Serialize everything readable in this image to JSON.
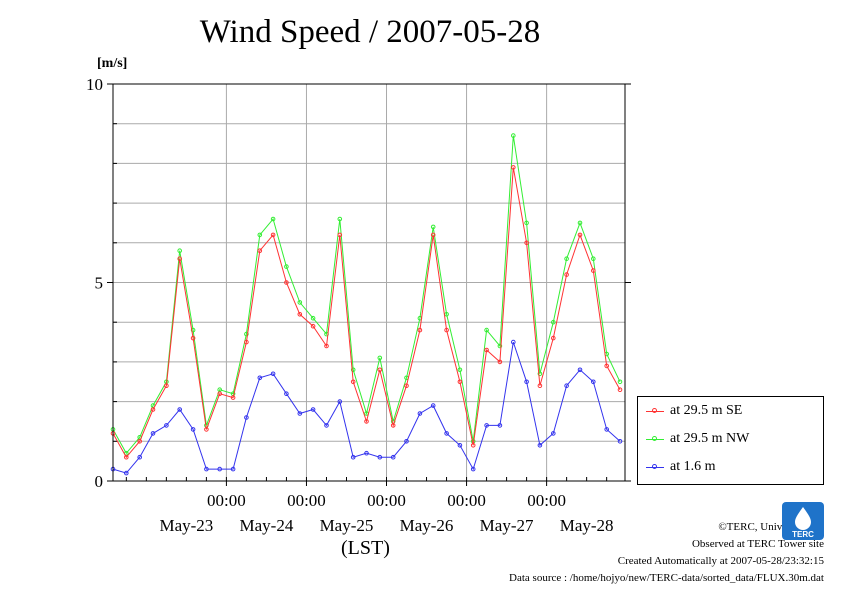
{
  "title": "Wind Speed / 2007-05-28",
  "unit_label": "[m/s]",
  "xlabel": "(LST)",
  "footer": {
    "copyright": "©TERC, Univ. Tsukuba",
    "observed": "Observed at TERC Tower site",
    "created": "Created Automatically at 2007-05-28/23:32:15",
    "source": "Data source : /home/hojyo/new/TERC-data/sorted_data/FLUX.30m.dat"
  },
  "logo_text": "TERC",
  "chart_data": {
    "type": "line",
    "title": "Wind Speed / 2007-05-28",
    "ylabel": "[m/s]",
    "xlabel": "(LST)",
    "ylim": [
      0,
      10
    ],
    "y_ticks": [
      "0",
      "5",
      "10"
    ],
    "x_time_ticks": [
      "00:00",
      "00:00",
      "00:00",
      "00:00",
      "00:00"
    ],
    "x_date_labels": [
      "May-23",
      "May-24",
      "May-25",
      "May-26",
      "May-27",
      "May-28"
    ],
    "x_range": [
      "2007-05-22 14:00",
      "2007-05-28 23:30"
    ],
    "grid": true,
    "legend_position": "right",
    "series": [
      {
        "name": "at 29.5 m SE",
        "color": "#ff3333",
        "points": [
          [
            "2007-05-22 14:00",
            1.2
          ],
          [
            "2007-05-22 18:00",
            0.6
          ],
          [
            "2007-05-22 22:00",
            1.0
          ],
          [
            "2007-05-23 02:00",
            1.8
          ],
          [
            "2007-05-23 06:00",
            2.4
          ],
          [
            "2007-05-23 10:00",
            5.6
          ],
          [
            "2007-05-23 14:00",
            3.6
          ],
          [
            "2007-05-23 18:00",
            1.3
          ],
          [
            "2007-05-23 22:00",
            2.2
          ],
          [
            "2007-05-24 02:00",
            2.1
          ],
          [
            "2007-05-24 06:00",
            3.5
          ],
          [
            "2007-05-24 10:00",
            5.8
          ],
          [
            "2007-05-24 14:00",
            6.2
          ],
          [
            "2007-05-24 18:00",
            5.0
          ],
          [
            "2007-05-24 22:00",
            4.2
          ],
          [
            "2007-05-25 02:00",
            3.9
          ],
          [
            "2007-05-25 06:00",
            3.4
          ],
          [
            "2007-05-25 10:00",
            6.2
          ],
          [
            "2007-05-25 14:00",
            2.5
          ],
          [
            "2007-05-25 18:00",
            1.5
          ],
          [
            "2007-05-25 22:00",
            2.8
          ],
          [
            "2007-05-26 02:00",
            1.4
          ],
          [
            "2007-05-26 06:00",
            2.4
          ],
          [
            "2007-05-26 10:00",
            3.8
          ],
          [
            "2007-05-26 14:00",
            6.2
          ],
          [
            "2007-05-26 18:00",
            3.8
          ],
          [
            "2007-05-26 22:00",
            2.5
          ],
          [
            "2007-05-27 02:00",
            0.9
          ],
          [
            "2007-05-27 06:00",
            3.3
          ],
          [
            "2007-05-27 10:00",
            3.0
          ],
          [
            "2007-05-27 14:00",
            7.9
          ],
          [
            "2007-05-27 18:00",
            6.0
          ],
          [
            "2007-05-27 22:00",
            2.4
          ],
          [
            "2007-05-28 02:00",
            3.6
          ],
          [
            "2007-05-28 06:00",
            5.2
          ],
          [
            "2007-05-28 10:00",
            6.2
          ],
          [
            "2007-05-28 14:00",
            5.3
          ],
          [
            "2007-05-28 18:00",
            2.9
          ],
          [
            "2007-05-28 22:00",
            2.3
          ]
        ]
      },
      {
        "name": "at 29.5 m NW",
        "color": "#33ee33",
        "points": [
          [
            "2007-05-22 14:00",
            1.3
          ],
          [
            "2007-05-22 18:00",
            0.7
          ],
          [
            "2007-05-22 22:00",
            1.1
          ],
          [
            "2007-05-23 02:00",
            1.9
          ],
          [
            "2007-05-23 06:00",
            2.5
          ],
          [
            "2007-05-23 10:00",
            5.8
          ],
          [
            "2007-05-23 14:00",
            3.8
          ],
          [
            "2007-05-23 18:00",
            1.4
          ],
          [
            "2007-05-23 22:00",
            2.3
          ],
          [
            "2007-05-24 02:00",
            2.2
          ],
          [
            "2007-05-24 06:00",
            3.7
          ],
          [
            "2007-05-24 10:00",
            6.2
          ],
          [
            "2007-05-24 14:00",
            6.6
          ],
          [
            "2007-05-24 18:00",
            5.4
          ],
          [
            "2007-05-24 22:00",
            4.5
          ],
          [
            "2007-05-25 02:00",
            4.1
          ],
          [
            "2007-05-25 06:00",
            3.7
          ],
          [
            "2007-05-25 10:00",
            6.6
          ],
          [
            "2007-05-25 14:00",
            2.8
          ],
          [
            "2007-05-25 18:00",
            1.7
          ],
          [
            "2007-05-25 22:00",
            3.1
          ],
          [
            "2007-05-26 02:00",
            1.5
          ],
          [
            "2007-05-26 06:00",
            2.6
          ],
          [
            "2007-05-26 10:00",
            4.1
          ],
          [
            "2007-05-26 14:00",
            6.4
          ],
          [
            "2007-05-26 18:00",
            4.2
          ],
          [
            "2007-05-26 22:00",
            2.8
          ],
          [
            "2007-05-27 02:00",
            1.0
          ],
          [
            "2007-05-27 06:00",
            3.8
          ],
          [
            "2007-05-27 10:00",
            3.4
          ],
          [
            "2007-05-27 14:00",
            8.7
          ],
          [
            "2007-05-27 18:00",
            6.5
          ],
          [
            "2007-05-27 22:00",
            2.7
          ],
          [
            "2007-05-28 02:00",
            4.0
          ],
          [
            "2007-05-28 06:00",
            5.6
          ],
          [
            "2007-05-28 10:00",
            6.5
          ],
          [
            "2007-05-28 14:00",
            5.6
          ],
          [
            "2007-05-28 18:00",
            3.2
          ],
          [
            "2007-05-28 22:00",
            2.5
          ]
        ]
      },
      {
        "name": "at 1.6 m",
        "color": "#3333ee",
        "points": [
          [
            "2007-05-22 14:00",
            0.3
          ],
          [
            "2007-05-22 18:00",
            0.2
          ],
          [
            "2007-05-22 22:00",
            0.6
          ],
          [
            "2007-05-23 02:00",
            1.2
          ],
          [
            "2007-05-23 06:00",
            1.4
          ],
          [
            "2007-05-23 10:00",
            1.8
          ],
          [
            "2007-05-23 14:00",
            1.3
          ],
          [
            "2007-05-23 18:00",
            0.3
          ],
          [
            "2007-05-23 22:00",
            0.3
          ],
          [
            "2007-05-24 02:00",
            0.3
          ],
          [
            "2007-05-24 06:00",
            1.6
          ],
          [
            "2007-05-24 10:00",
            2.6
          ],
          [
            "2007-05-24 14:00",
            2.7
          ],
          [
            "2007-05-24 18:00",
            2.2
          ],
          [
            "2007-05-24 22:00",
            1.7
          ],
          [
            "2007-05-25 02:00",
            1.8
          ],
          [
            "2007-05-25 06:00",
            1.4
          ],
          [
            "2007-05-25 10:00",
            2.0
          ],
          [
            "2007-05-25 14:00",
            0.6
          ],
          [
            "2007-05-25 18:00",
            0.7
          ],
          [
            "2007-05-25 22:00",
            0.6
          ],
          [
            "2007-05-26 02:00",
            0.6
          ],
          [
            "2007-05-26 06:00",
            1.0
          ],
          [
            "2007-05-26 10:00",
            1.7
          ],
          [
            "2007-05-26 14:00",
            1.9
          ],
          [
            "2007-05-26 18:00",
            1.2
          ],
          [
            "2007-05-26 22:00",
            0.9
          ],
          [
            "2007-05-27 02:00",
            0.3
          ],
          [
            "2007-05-27 06:00",
            1.4
          ],
          [
            "2007-05-27 10:00",
            1.4
          ],
          [
            "2007-05-27 14:00",
            3.5
          ],
          [
            "2007-05-27 18:00",
            2.5
          ],
          [
            "2007-05-27 22:00",
            0.9
          ],
          [
            "2007-05-28 02:00",
            1.2
          ],
          [
            "2007-05-28 06:00",
            2.4
          ],
          [
            "2007-05-28 10:00",
            2.8
          ],
          [
            "2007-05-28 14:00",
            2.5
          ],
          [
            "2007-05-28 18:00",
            1.3
          ],
          [
            "2007-05-28 22:00",
            1.0
          ]
        ]
      }
    ]
  }
}
